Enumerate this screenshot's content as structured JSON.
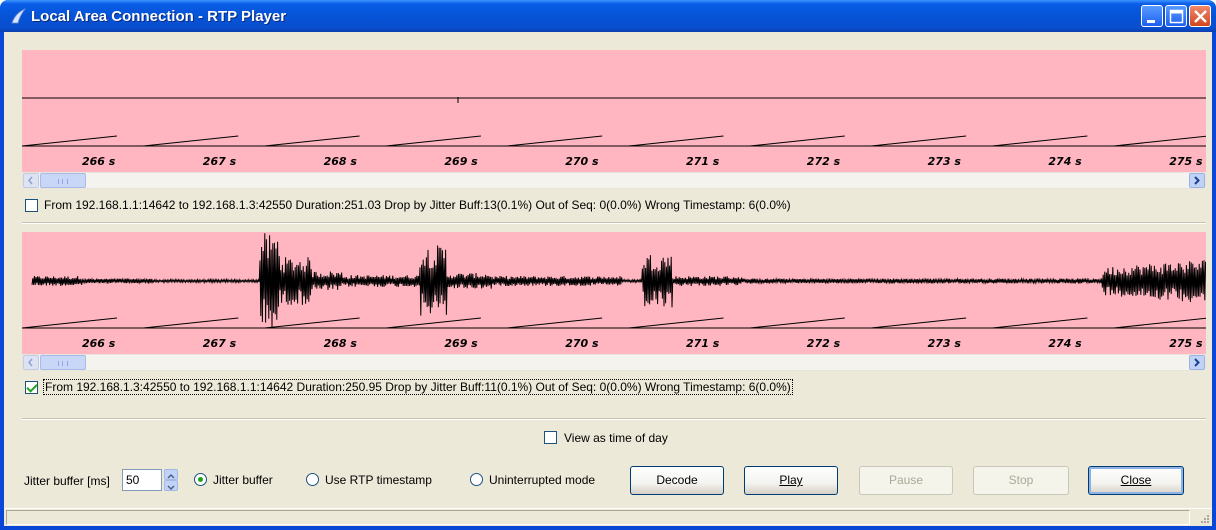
{
  "window": {
    "title": "Local Area Connection - RTP Player"
  },
  "streams": [
    {
      "checked": false,
      "info": "From 192.168.1.1:14642 to 192.168.1.3:42550   Duration:251.03   Drop by Jitter Buff:13(0.1%)   Out of Seq: 0(0.0%)   Wrong Timestamp: 6(0.0%)",
      "ticks": [
        "266 s",
        "267 s",
        "268 s",
        "269 s",
        "270 s",
        "271 s",
        "272 s",
        "273 s",
        "274 s",
        "275 s"
      ]
    },
    {
      "checked": true,
      "info": "From 192.168.1.3:42550 to 192.168.1.1:14642   Duration:250.95   Drop by Jitter Buff:11(0.1%)   Out of Seq: 0(0.0%)   Wrong Timestamp: 6(0.0%)",
      "ticks": [
        "266 s",
        "267 s",
        "268 s",
        "269 s",
        "270 s",
        "271 s",
        "272 s",
        "273 s",
        "274 s",
        "275 s"
      ]
    }
  ],
  "view_as_time_of_day": {
    "label": "View as time of day",
    "checked": false
  },
  "jitter": {
    "label": "Jitter buffer [ms]",
    "value": "50"
  },
  "modes": [
    {
      "label": "Jitter buffer",
      "selected": true
    },
    {
      "label": "Use RTP timestamp",
      "selected": false
    },
    {
      "label": "Uninterrupted mode",
      "selected": false
    }
  ],
  "buttons": {
    "decode": "Decode",
    "play": "Play",
    "pause": "Pause",
    "stop": "Stop",
    "close": "Close"
  },
  "icons": {
    "app": "wireshark-fin-icon",
    "minimize": "minimize-icon",
    "maximize": "maximize-icon",
    "close": "close-icon",
    "scroll_left": "arrow-left-icon",
    "scroll_right": "arrow-right-icon",
    "spin_up": "arrow-up-icon",
    "spin_down": "arrow-down-icon",
    "size_grip": "size-grip-icon"
  },
  "colors": {
    "waveform_background": "#ffb6c1",
    "titlebar": "#0553d6"
  }
}
